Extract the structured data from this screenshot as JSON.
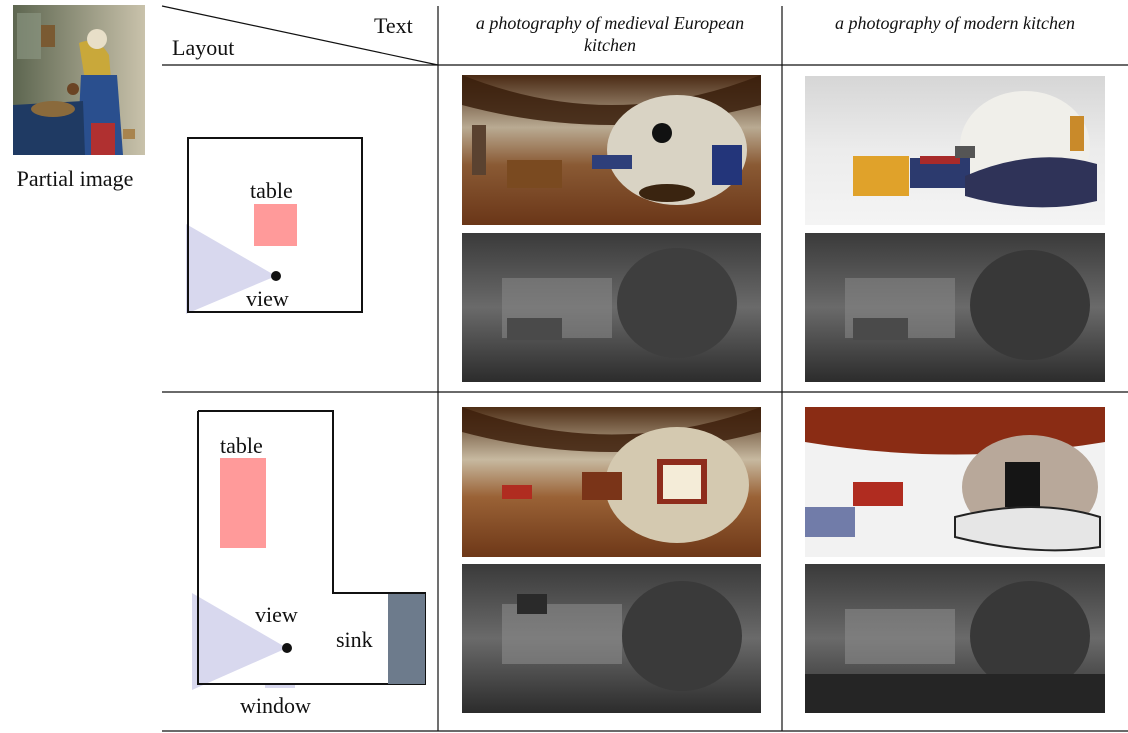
{
  "header": {
    "text_label": "Text",
    "layout_label": "Layout",
    "columns": [
      "a photography of medieval European kitchen",
      "a photography of modern kitchen"
    ]
  },
  "partial_image": {
    "caption": "Partial image"
  },
  "layouts": [
    {
      "labels": {
        "table": "table",
        "view": "view"
      }
    },
    {
      "labels": {
        "table": "table",
        "view": "view",
        "sink": "sink",
        "window": "window"
      }
    }
  ],
  "colors": {
    "table": "#ff9a9a",
    "view_cone": "#d8d8ee",
    "sink": "#6d7b8c",
    "line": "#111111"
  }
}
